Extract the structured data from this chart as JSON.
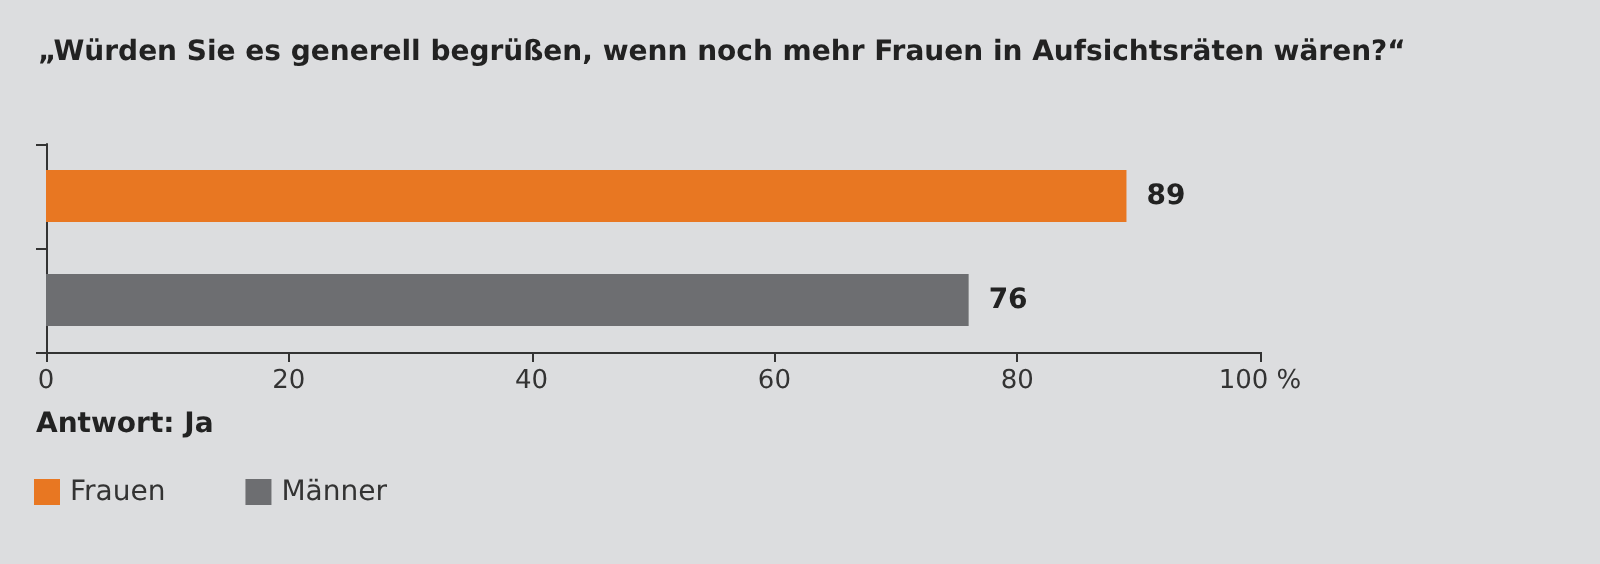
{
  "chart_data": {
    "type": "bar",
    "orientation": "horizontal",
    "title": "„Würden Sie es generell begrüßen, wenn noch mehr Frauen in Aufsichtsräten wären?“",
    "categories": [
      null,
      null
    ],
    "series": [
      {
        "name": "Frauen",
        "color": "#e87722",
        "values": [
          89,
          null
        ]
      },
      {
        "name": "Männer",
        "color": "#6d6e71",
        "values": [
          null,
          76
        ]
      }
    ],
    "xlim": [
      0,
      100
    ],
    "xticks": [
      0,
      20,
      40,
      60,
      80,
      {
        "value": 100,
        "label": "100 %"
      }
    ],
    "annotations": [
      "Antwort: Ja"
    ],
    "data_labels": true,
    "legend": "bottom left"
  }
}
